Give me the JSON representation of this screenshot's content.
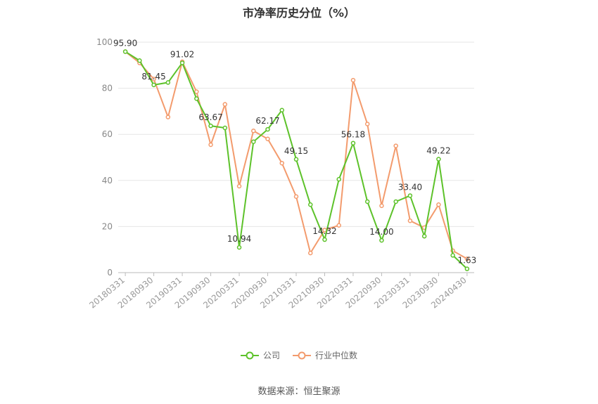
{
  "chart_data": {
    "type": "line",
    "title": "市净率历史分位（%）",
    "ylim": [
      0,
      100
    ],
    "y_ticks": [
      0,
      20,
      40,
      60,
      80,
      100
    ],
    "x": [
      "20180331",
      "20180630",
      "20180930",
      "20181231",
      "20190331",
      "20190630",
      "20190930",
      "20191231",
      "20200331",
      "20200630",
      "20200930",
      "20201231",
      "20210331",
      "20210630",
      "20210930",
      "20211231",
      "20220331",
      "20220630",
      "20220930",
      "20221231",
      "20230331",
      "20230630",
      "20230930",
      "20231231",
      "20240430"
    ],
    "x_tick_labels": [
      "20180331",
      "20180930",
      "20190331",
      "20190930",
      "20200331",
      "20200930",
      "20210331",
      "20210930",
      "20220331",
      "20220930",
      "20230331",
      "20230930",
      "20240430"
    ],
    "series": [
      {
        "name": "公司",
        "color": "#5dc22a",
        "values": [
          95.9,
          92.0,
          81.45,
          82.5,
          91.02,
          75.5,
          63.67,
          62.8,
          10.94,
          56.8,
          62.17,
          70.5,
          49.15,
          29.5,
          14.32,
          40.5,
          56.18,
          30.8,
          14.0,
          30.8,
          33.4,
          15.8,
          49.22,
          7.5,
          1.63
        ]
      },
      {
        "name": "行业中位数",
        "color": "#f39b6d",
        "values": [
          95.9,
          91.0,
          84.0,
          67.5,
          91.5,
          78.5,
          55.5,
          73.0,
          37.5,
          61.5,
          58.0,
          47.5,
          33.0,
          8.5,
          18.5,
          20.5,
          83.5,
          64.5,
          29.0,
          55.0,
          22.5,
          19.5,
          29.5,
          9.5,
          6.0
        ]
      }
    ],
    "annotations": [
      {
        "series": 0,
        "index": 0,
        "text": "95.90"
      },
      {
        "series": 0,
        "index": 2,
        "text": "81.45"
      },
      {
        "series": 0,
        "index": 4,
        "text": "91.02"
      },
      {
        "series": 0,
        "index": 6,
        "text": "63.67"
      },
      {
        "series": 0,
        "index": 8,
        "text": "10.94"
      },
      {
        "series": 0,
        "index": 10,
        "text": "62.17"
      },
      {
        "series": 0,
        "index": 12,
        "text": "49.15"
      },
      {
        "series": 0,
        "index": 14,
        "text": "14.32"
      },
      {
        "series": 0,
        "index": 16,
        "text": "56.18"
      },
      {
        "series": 0,
        "index": 18,
        "text": "14.00"
      },
      {
        "series": 0,
        "index": 20,
        "text": "33.40"
      },
      {
        "series": 0,
        "index": 22,
        "text": "49.22"
      },
      {
        "series": 0,
        "index": 24,
        "text": "1.63"
      }
    ],
    "legend_position": "bottom-center",
    "grid": true
  },
  "source_text": "数据来源：恒生聚源"
}
